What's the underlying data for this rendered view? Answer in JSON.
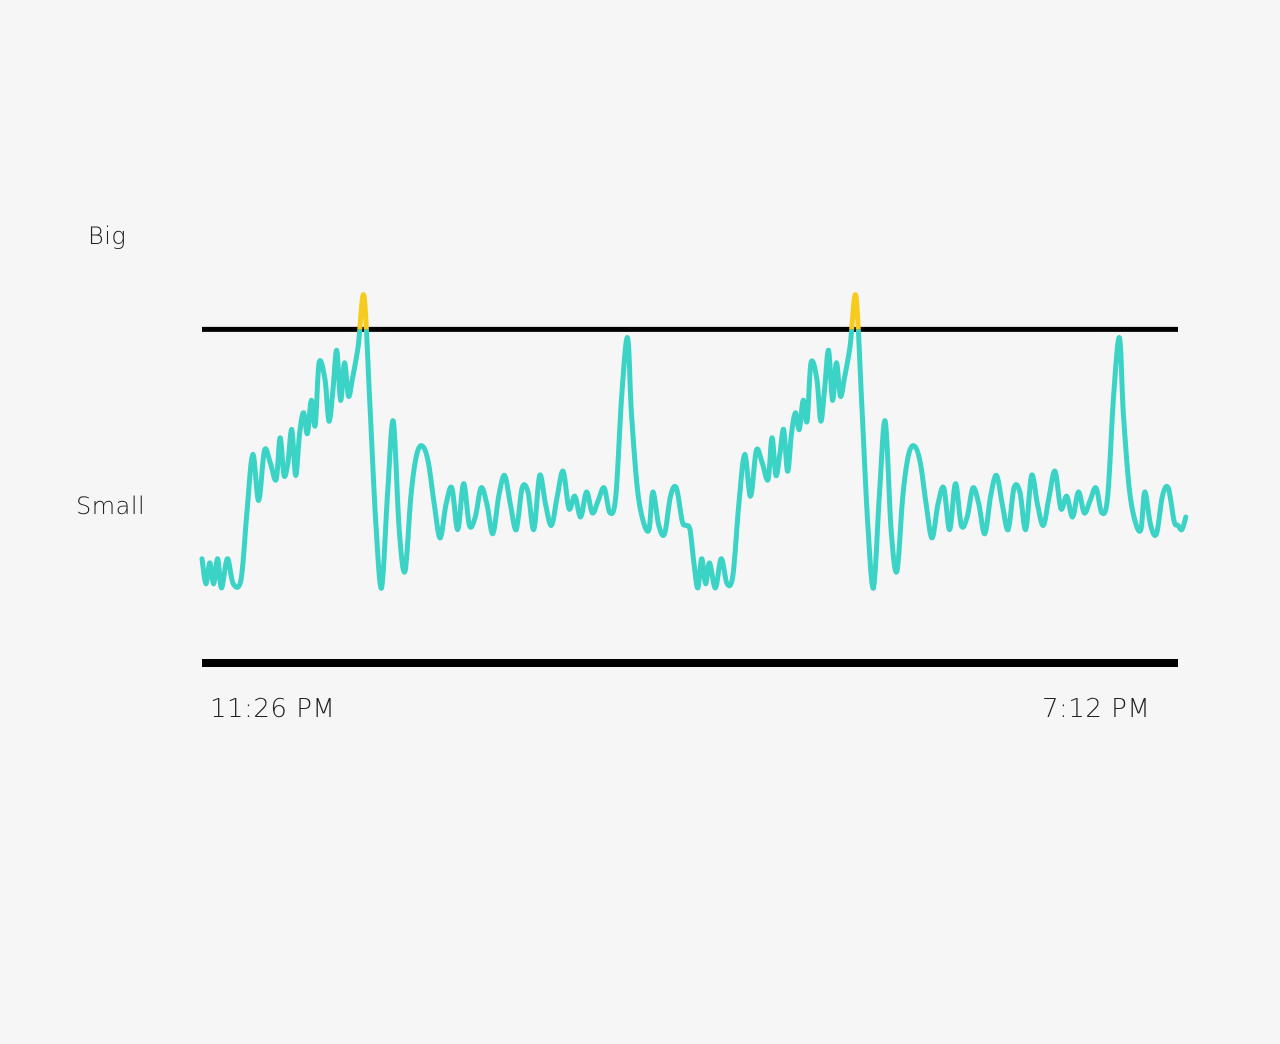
{
  "chart_data": {
    "type": "line",
    "title": "",
    "xlabel": "",
    "ylabel": "",
    "y_tick_labels": {
      "top": "Big",
      "middle": "Small"
    },
    "x_tick_labels": {
      "start": "11:26 PM",
      "end": "7:12 PM"
    },
    "ylim": [
      0,
      1
    ],
    "thresholds": [
      {
        "name": "upper",
        "value": 0.8
      },
      {
        "name": "lower",
        "value": 0.0
      }
    ],
    "grid": false,
    "legend": "none",
    "colors": {
      "line": "#3bd3c5",
      "over_threshold": "#f7cb1e",
      "threshold": "#000000",
      "background": "#f6f6f6"
    },
    "series": [
      {
        "values": [
          [
            0.0,
            0.25
          ],
          [
            0.004,
            0.19
          ],
          [
            0.008,
            0.24
          ],
          [
            0.012,
            0.19
          ],
          [
            0.016,
            0.25
          ],
          [
            0.02,
            0.18
          ],
          [
            0.026,
            0.25
          ],
          [
            0.032,
            0.19
          ],
          [
            0.04,
            0.2
          ],
          [
            0.046,
            0.36
          ],
          [
            0.052,
            0.5
          ],
          [
            0.058,
            0.39
          ],
          [
            0.064,
            0.51
          ],
          [
            0.07,
            0.48
          ],
          [
            0.076,
            0.44
          ],
          [
            0.08,
            0.54
          ],
          [
            0.084,
            0.45
          ],
          [
            0.088,
            0.48
          ],
          [
            0.092,
            0.56
          ],
          [
            0.096,
            0.45
          ],
          [
            0.1,
            0.55
          ],
          [
            0.104,
            0.6
          ],
          [
            0.108,
            0.55
          ],
          [
            0.112,
            0.63
          ],
          [
            0.116,
            0.57
          ],
          [
            0.12,
            0.72
          ],
          [
            0.126,
            0.68
          ],
          [
            0.13,
            0.58
          ],
          [
            0.134,
            0.65
          ],
          [
            0.138,
            0.75
          ],
          [
            0.142,
            0.63
          ],
          [
            0.146,
            0.72
          ],
          [
            0.15,
            0.64
          ],
          [
            0.154,
            0.68
          ],
          [
            0.16,
            0.76
          ],
          [
            0.166,
            0.88
          ],
          [
            0.172,
            0.62
          ],
          [
            0.178,
            0.34
          ],
          [
            0.184,
            0.18
          ],
          [
            0.19,
            0.4
          ],
          [
            0.196,
            0.58
          ],
          [
            0.202,
            0.32
          ],
          [
            0.208,
            0.22
          ],
          [
            0.214,
            0.4
          ],
          [
            0.22,
            0.5
          ],
          [
            0.226,
            0.52
          ],
          [
            0.232,
            0.48
          ],
          [
            0.238,
            0.38
          ],
          [
            0.244,
            0.3
          ],
          [
            0.25,
            0.38
          ],
          [
            0.256,
            0.42
          ],
          [
            0.262,
            0.32
          ],
          [
            0.268,
            0.43
          ],
          [
            0.274,
            0.33
          ],
          [
            0.28,
            0.35
          ],
          [
            0.286,
            0.42
          ],
          [
            0.292,
            0.38
          ],
          [
            0.298,
            0.31
          ],
          [
            0.304,
            0.4
          ],
          [
            0.31,
            0.45
          ],
          [
            0.316,
            0.38
          ],
          [
            0.322,
            0.32
          ],
          [
            0.328,
            0.42
          ],
          [
            0.334,
            0.41
          ],
          [
            0.34,
            0.32
          ],
          [
            0.346,
            0.45
          ],
          [
            0.352,
            0.38
          ],
          [
            0.358,
            0.33
          ],
          [
            0.364,
            0.4
          ],
          [
            0.37,
            0.46
          ],
          [
            0.376,
            0.37
          ],
          [
            0.382,
            0.4
          ],
          [
            0.388,
            0.35
          ],
          [
            0.394,
            0.41
          ],
          [
            0.4,
            0.36
          ],
          [
            0.406,
            0.39
          ],
          [
            0.412,
            0.42
          ],
          [
            0.418,
            0.36
          ],
          [
            0.424,
            0.4
          ],
          [
            0.43,
            0.64
          ],
          [
            0.436,
            0.78
          ],
          [
            0.44,
            0.6
          ],
          [
            0.446,
            0.42
          ],
          [
            0.452,
            0.34
          ],
          [
            0.458,
            0.32
          ],
          [
            0.462,
            0.41
          ],
          [
            0.468,
            0.33
          ],
          [
            0.474,
            0.31
          ],
          [
            0.48,
            0.4
          ],
          [
            0.486,
            0.42
          ],
          [
            0.492,
            0.34
          ],
          [
            0.496,
            0.33
          ],
          [
            0.5,
            0.32
          ],
          [
            0.504,
            0.24
          ],
          [
            0.508,
            0.18
          ],
          [
            0.512,
            0.25
          ],
          [
            0.516,
            0.19
          ],
          [
            0.52,
            0.24
          ],
          [
            0.526,
            0.18
          ],
          [
            0.532,
            0.25
          ],
          [
            0.538,
            0.19
          ],
          [
            0.544,
            0.21
          ],
          [
            0.55,
            0.38
          ],
          [
            0.556,
            0.5
          ],
          [
            0.562,
            0.4
          ],
          [
            0.568,
            0.51
          ],
          [
            0.574,
            0.48
          ],
          [
            0.58,
            0.44
          ],
          [
            0.584,
            0.54
          ],
          [
            0.588,
            0.45
          ],
          [
            0.592,
            0.5
          ],
          [
            0.596,
            0.56
          ],
          [
            0.6,
            0.46
          ],
          [
            0.604,
            0.55
          ],
          [
            0.608,
            0.6
          ],
          [
            0.612,
            0.56
          ],
          [
            0.616,
            0.63
          ],
          [
            0.62,
            0.58
          ],
          [
            0.624,
            0.72
          ],
          [
            0.63,
            0.68
          ],
          [
            0.634,
            0.58
          ],
          [
            0.638,
            0.66
          ],
          [
            0.642,
            0.75
          ],
          [
            0.646,
            0.63
          ],
          [
            0.65,
            0.72
          ],
          [
            0.654,
            0.64
          ],
          [
            0.658,
            0.68
          ],
          [
            0.664,
            0.76
          ],
          [
            0.67,
            0.88
          ],
          [
            0.676,
            0.62
          ],
          [
            0.682,
            0.34
          ],
          [
            0.688,
            0.18
          ],
          [
            0.694,
            0.4
          ],
          [
            0.7,
            0.58
          ],
          [
            0.706,
            0.32
          ],
          [
            0.712,
            0.22
          ],
          [
            0.718,
            0.4
          ],
          [
            0.724,
            0.5
          ],
          [
            0.73,
            0.52
          ],
          [
            0.736,
            0.48
          ],
          [
            0.742,
            0.38
          ],
          [
            0.748,
            0.3
          ],
          [
            0.754,
            0.38
          ],
          [
            0.76,
            0.42
          ],
          [
            0.766,
            0.32
          ],
          [
            0.772,
            0.43
          ],
          [
            0.778,
            0.33
          ],
          [
            0.784,
            0.35
          ],
          [
            0.79,
            0.42
          ],
          [
            0.796,
            0.38
          ],
          [
            0.802,
            0.31
          ],
          [
            0.808,
            0.4
          ],
          [
            0.814,
            0.45
          ],
          [
            0.82,
            0.38
          ],
          [
            0.826,
            0.32
          ],
          [
            0.832,
            0.42
          ],
          [
            0.838,
            0.41
          ],
          [
            0.844,
            0.32
          ],
          [
            0.85,
            0.45
          ],
          [
            0.856,
            0.38
          ],
          [
            0.862,
            0.33
          ],
          [
            0.868,
            0.4
          ],
          [
            0.874,
            0.46
          ],
          [
            0.88,
            0.37
          ],
          [
            0.886,
            0.4
          ],
          [
            0.892,
            0.35
          ],
          [
            0.898,
            0.41
          ],
          [
            0.904,
            0.36
          ],
          [
            0.91,
            0.39
          ],
          [
            0.916,
            0.42
          ],
          [
            0.922,
            0.36
          ],
          [
            0.928,
            0.4
          ],
          [
            0.934,
            0.64
          ],
          [
            0.94,
            0.78
          ],
          [
            0.944,
            0.6
          ],
          [
            0.95,
            0.42
          ],
          [
            0.956,
            0.34
          ],
          [
            0.962,
            0.32
          ],
          [
            0.966,
            0.41
          ],
          [
            0.972,
            0.33
          ],
          [
            0.978,
            0.31
          ],
          [
            0.984,
            0.4
          ],
          [
            0.99,
            0.42
          ],
          [
            0.996,
            0.34
          ],
          [
            1.0,
            0.33
          ],
          [
            1.004,
            0.32
          ],
          [
            1.008,
            0.35
          ]
        ]
      }
    ]
  }
}
